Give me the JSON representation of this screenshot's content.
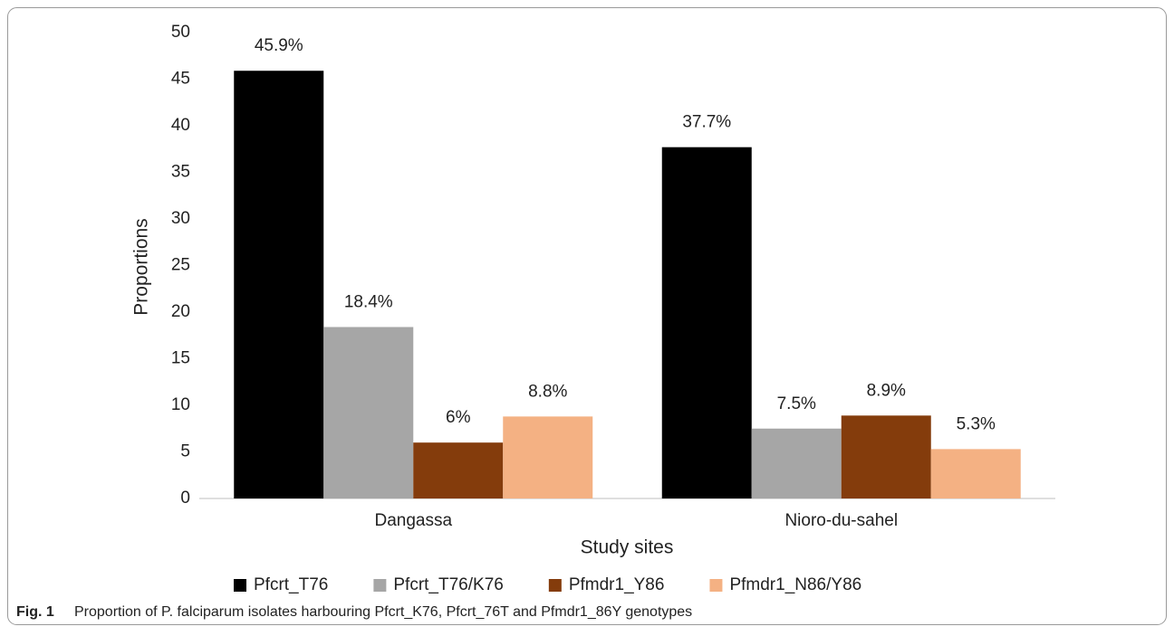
{
  "chart_data": {
    "type": "bar",
    "categories": [
      "Dangassa",
      "Nioro-du-sahel"
    ],
    "series": [
      {
        "name": "Pfcrt_T76",
        "color": "#000000",
        "values": [
          45.9,
          37.7
        ],
        "value_labels": [
          "45.9%",
          "37.7%"
        ]
      },
      {
        "name": "Pfcrt_T76/K76",
        "color": "#a6a6a6",
        "values": [
          18.4,
          7.5
        ],
        "value_labels": [
          "18.4%",
          "7.5%"
        ]
      },
      {
        "name": "Pfmdr1_Y86",
        "color": "#843c0c",
        "values": [
          6,
          8.9
        ],
        "value_labels": [
          "6%",
          "8.9%"
        ]
      },
      {
        "name": "Pfmdr1_N86/Y86",
        "color": "#f4b183",
        "values": [
          8.8,
          5.3
        ],
        "value_labels": [
          "8.8%",
          "5.3%"
        ]
      }
    ],
    "ylim": [
      0,
      50
    ],
    "yticks": [
      0,
      5,
      10,
      15,
      20,
      25,
      30,
      35,
      40,
      45,
      50
    ],
    "xlabel": "Study sites",
    "ylabel": "Proportions",
    "grid": false,
    "legend": "bottom"
  },
  "caption": {
    "label": "Fig. 1",
    "text": "Proportion of P. falciparum isolates harbouring Pfcrt_K76, Pfcrt_76T and Pfmdr1_86Y genotypes"
  }
}
